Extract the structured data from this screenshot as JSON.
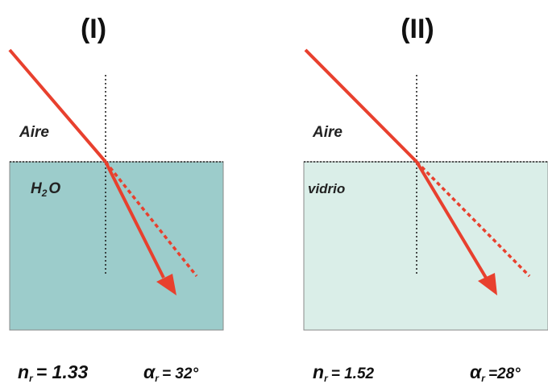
{
  "colors": {
    "water": "#9ccccb",
    "glass": "#daeee8",
    "ray": "#e8402e",
    "normal_line": "#222222"
  },
  "panels": [
    {
      "title": "(I)",
      "upper_medium": "Aire",
      "lower_medium_main": "H",
      "lower_medium_sub": "2",
      "lower_medium_tail": "O",
      "n_symbol": "n",
      "n_sub": "r",
      "n_value": "= 1.33",
      "alpha_symbol": "α",
      "alpha_sub": "r",
      "alpha_value": "= 32°"
    },
    {
      "title": "(II)",
      "upper_medium": "Aire",
      "lower_medium_main": "vidrio",
      "n_symbol": "n",
      "n_sub": "r",
      "n_value": "= 1.52",
      "alpha_symbol": "α",
      "alpha_sub": "r",
      "alpha_value": "=28°"
    }
  ]
}
